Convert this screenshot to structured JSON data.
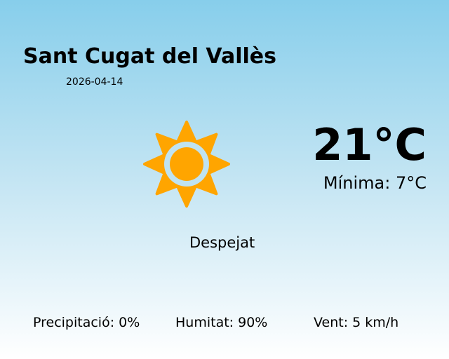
{
  "location": {
    "city": "Sant Cugat del Vallès",
    "date": "2026-04-14"
  },
  "current": {
    "temperature": "21°C",
    "minimum": "Mínima: 7°C",
    "condition": "Despejat",
    "icon": "sun-icon"
  },
  "stats": {
    "precipitation": "Precipitació: 0%",
    "humidity": "Humitat: 90%",
    "wind": "Vent: 5 km/h"
  },
  "colors": {
    "sun": "#ffa500",
    "sky_top": "#87ceeb",
    "sky_bottom": "#ffffff"
  }
}
